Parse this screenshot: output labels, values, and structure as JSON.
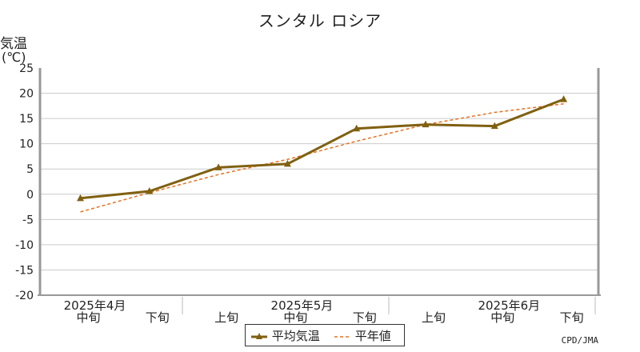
{
  "chart_data": {
    "type": "line",
    "title": "スンタル ロシア",
    "ylabel_line1": "気温",
    "ylabel_line2": "(℃)",
    "ylim": [
      -20,
      25
    ],
    "yticks": [
      25,
      20,
      15,
      10,
      5,
      0,
      -5,
      -10,
      -15,
      -20
    ],
    "grid": true,
    "legend_placement": "bottom",
    "categories": [
      "中旬",
      "下旬",
      "上旬",
      "中旬",
      "下旬",
      "上旬",
      "中旬",
      "下旬"
    ],
    "month_labels": [
      {
        "label": "2025年4月",
        "index": 0
      },
      {
        "label": "2025年5月",
        "index": 3
      },
      {
        "label": "2025年6月",
        "index": 6
      }
    ],
    "series": [
      {
        "name": "平均気温",
        "values": [
          -0.8,
          0.6,
          5.3,
          6.0,
          13.0,
          13.8,
          13.5,
          18.8
        ],
        "color": "#806010",
        "style": "solid",
        "marker": "triangle"
      },
      {
        "name": "平年値",
        "values": [
          -3.5,
          0.3,
          3.9,
          6.9,
          10.5,
          13.8,
          16.2,
          17.9
        ],
        "color": "#e87020",
        "style": "dashed"
      }
    ]
  },
  "credit": "CPD/JMA"
}
